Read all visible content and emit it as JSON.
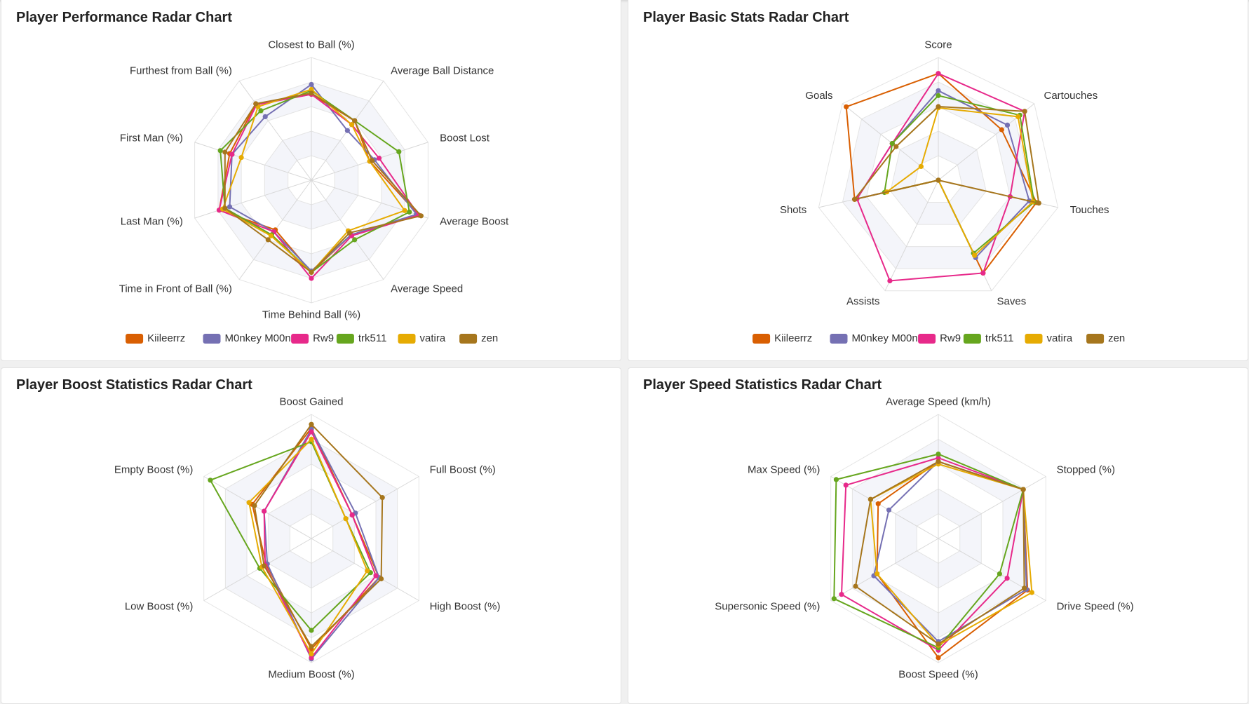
{
  "players": [
    "Kiileerrz",
    "M0nkey M00n",
    "Rw9",
    "trk511",
    "vatira",
    "zen"
  ],
  "colors": {
    "Kiileerrz": "#d95f02",
    "M0nkey M00n": "#7570b3",
    "Rw9": "#e7298a",
    "trk511": "#66a61e",
    "vatira": "#e6ab02",
    "zen": "#a6761d"
  },
  "chart_data": [
    {
      "type": "radar",
      "title": "Player Performance Radar Chart",
      "axes": [
        "Closest to Ball (%)",
        "Average Ball Distance",
        "Boost Lost",
        "Average Boost",
        "Average Speed",
        "Time Behind Ball (%)",
        "Time in Front of Ball (%)",
        "Last Man (%)",
        "First Man (%)",
        "Furthest from Ball (%)"
      ],
      "range": [
        0,
        1
      ],
      "legend": "bottom",
      "series": [
        {
          "name": "Kiileerrz",
          "values": [
            0.7,
            0.6,
            0.5,
            0.92,
            0.55,
            0.75,
            0.5,
            0.79,
            0.7,
            0.77
          ]
        },
        {
          "name": "M0nkey M00n",
          "values": [
            0.78,
            0.5,
            0.54,
            0.9,
            0.55,
            0.74,
            0.52,
            0.7,
            0.68,
            0.64
          ]
        },
        {
          "name": "Rw9",
          "values": [
            0.7,
            0.56,
            0.58,
            0.92,
            0.56,
            0.8,
            0.52,
            0.79,
            0.68,
            0.76
          ]
        },
        {
          "name": "trk511",
          "values": [
            0.73,
            0.6,
            0.75,
            0.84,
            0.6,
            0.75,
            0.55,
            0.74,
            0.78,
            0.7
          ]
        },
        {
          "name": "vatira",
          "values": [
            0.74,
            0.56,
            0.5,
            0.8,
            0.51,
            0.75,
            0.56,
            0.76,
            0.6,
            0.74
          ]
        },
        {
          "name": "zen",
          "values": [
            0.71,
            0.6,
            0.52,
            0.94,
            0.53,
            0.75,
            0.6,
            0.74,
            0.74,
            0.77
          ]
        }
      ]
    },
    {
      "type": "radar",
      "title": "Player Basic Stats Radar Chart",
      "axes": [
        "Score",
        "Cartouches",
        "Touches",
        "Saves",
        "Assists",
        "Shots",
        "Goals"
      ],
      "range": [
        0,
        1
      ],
      "legend": "bottom",
      "series": [
        {
          "name": "Kiileerrz",
          "values": [
            0.87,
            0.66,
            0.82,
            0.84,
            0.0,
            0.7,
            0.96
          ]
        },
        {
          "name": "M0nkey M00n",
          "values": [
            0.73,
            0.72,
            0.76,
            0.7,
            0.0,
            0.68,
            0.48
          ]
        },
        {
          "name": "Rw9",
          "values": [
            0.87,
            0.9,
            0.6,
            0.84,
            0.91,
            0.68,
            0.48
          ]
        },
        {
          "name": "trk511",
          "values": [
            0.69,
            0.85,
            0.8,
            0.66,
            0.0,
            0.45,
            0.48
          ]
        },
        {
          "name": "vatira",
          "values": [
            0.59,
            0.83,
            0.79,
            0.68,
            0.0,
            0.43,
            0.18
          ]
        },
        {
          "name": "zen",
          "values": [
            0.6,
            0.9,
            0.84,
            0.0,
            0.0,
            0.7,
            0.44
          ]
        }
      ]
    },
    {
      "type": "radar",
      "title": "Player Boost Statistics Radar Chart",
      "axes": [
        "Boost Gained",
        "Full Boost (%)",
        "High Boost (%)",
        "Medium Boost (%)",
        "Low Boost (%)",
        "Empty Boost (%)"
      ],
      "range": [
        0,
        1
      ],
      "legend": "none",
      "series": [
        {
          "name": "Kiileerrz",
          "values": [
            0.89,
            0.38,
            0.63,
            0.89,
            0.42,
            0.55
          ]
        },
        {
          "name": "M0nkey M00n",
          "values": [
            0.88,
            0.41,
            0.63,
            0.97,
            0.41,
            0.44
          ]
        },
        {
          "name": "Rw9",
          "values": [
            0.86,
            0.38,
            0.6,
            0.96,
            0.43,
            0.44
          ]
        },
        {
          "name": "trk511",
          "values": [
            0.78,
            0.32,
            0.55,
            0.74,
            0.48,
            0.94
          ]
        },
        {
          "name": "vatira",
          "values": [
            0.8,
            0.32,
            0.52,
            0.93,
            0.46,
            0.58
          ]
        },
        {
          "name": "zen",
          "values": [
            0.92,
            0.66,
            0.65,
            0.87,
            0.44,
            0.53
          ]
        }
      ]
    },
    {
      "type": "radar",
      "title": "Player Speed Statistics Radar Chart",
      "axes": [
        "Average Speed (km/h)",
        "Stopped (%)",
        "Drive Speed (%)",
        "Boost Speed (%)",
        "Supersonic Speed (%)",
        "Max Speed (%)"
      ],
      "range": [
        0,
        1
      ],
      "legend": "none",
      "series": [
        {
          "name": "Kiileerrz",
          "values": [
            0.62,
            0.79,
            0.83,
            0.96,
            0.57,
            0.56
          ]
        },
        {
          "name": "M0nkey M00n",
          "values": [
            0.62,
            0.79,
            0.82,
            0.83,
            0.6,
            0.46
          ]
        },
        {
          "name": "Rw9",
          "values": [
            0.65,
            0.79,
            0.64,
            0.9,
            0.9,
            0.86
          ]
        },
        {
          "name": "trk511",
          "values": [
            0.68,
            0.79,
            0.57,
            0.88,
            0.97,
            0.95
          ]
        },
        {
          "name": "vatira",
          "values": [
            0.6,
            0.79,
            0.87,
            0.86,
            0.57,
            0.63
          ]
        },
        {
          "name": "zen",
          "values": [
            0.62,
            0.79,
            0.8,
            0.85,
            0.77,
            0.63
          ]
        }
      ]
    }
  ]
}
